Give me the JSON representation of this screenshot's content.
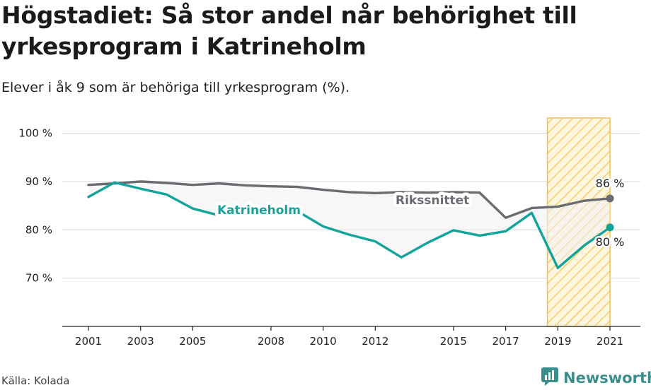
{
  "title": "Högstadiet: Så stor andel når behörighet till yrkesprogram i Katrineholm",
  "subtitle": "Elever i åk 9 som är behöriga till yrkesprogram (%).",
  "source": "Källa: Kolada",
  "brand": {
    "name": "Newsworthy",
    "icon": "newsworthy-logo-icon"
  },
  "colors": {
    "katrineholm": "#12a39a",
    "riket": "#6b6b72",
    "highlight": "#f5c04a",
    "fill": "#f0f0f2"
  },
  "chart_data": {
    "type": "line",
    "ylim": [
      60,
      103
    ],
    "xlim": [
      2000,
      2022
    ],
    "y_ticks": [
      70,
      80,
      90,
      100
    ],
    "y_tick_labels": [
      "70 %",
      "80 %",
      "90 %",
      "100 %"
    ],
    "x_ticks": [
      2001,
      2003,
      2005,
      2008,
      2010,
      2012,
      2015,
      2017,
      2019,
      2021
    ],
    "x_tick_labels": [
      "2001",
      "2003",
      "2005",
      "2008",
      "2010",
      "2012",
      "2015",
      "2017",
      "2019",
      "2021"
    ],
    "highlight_range": [
      2018.6,
      2021
    ],
    "grid": true,
    "series": [
      {
        "name": "Rikssnittet",
        "x": [
          2001,
          2002,
          2003,
          2004,
          2005,
          2006,
          2007,
          2008,
          2009,
          2010,
          2011,
          2012,
          2013,
          2014,
          2015,
          2016,
          2017,
          2018,
          2019,
          2020,
          2021
        ],
        "values": [
          89.3,
          89.6,
          90.0,
          89.7,
          89.3,
          89.6,
          89.2,
          89.0,
          88.9,
          88.3,
          87.8,
          87.6,
          87.8,
          87.7,
          87.8,
          87.7,
          82.5,
          84.5,
          84.8,
          86.0,
          86.5
        ],
        "end_label": "86 %"
      },
      {
        "name": "Katrineholm",
        "x": [
          2001,
          2002,
          2003,
          2004,
          2005,
          2006,
          2007,
          2008,
          2009,
          2010,
          2011,
          2012,
          2013,
          2014,
          2015,
          2016,
          2017,
          2018,
          2019,
          2020,
          2021
        ],
        "values": [
          86.8,
          89.8,
          88.5,
          87.3,
          84.4,
          83.0,
          83.1,
          83.7,
          83.9,
          80.7,
          79.0,
          77.6,
          74.3,
          77.3,
          79.9,
          78.8,
          79.7,
          83.5,
          72.1,
          76.7,
          80.5
        ],
        "end_label": "80 %"
      }
    ]
  }
}
